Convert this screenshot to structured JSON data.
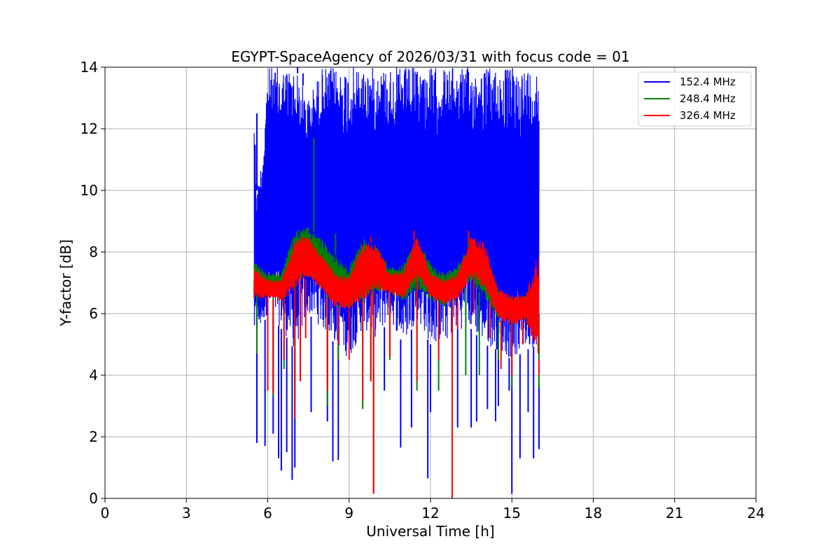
{
  "chart_data": {
    "type": "line",
    "title": "EGYPT-SpaceAgency of 2026/03/31 with focus code = 01",
    "xlabel": "Universal Time [h]",
    "ylabel": "Y-factor [dB]",
    "xlim": [
      0,
      24
    ],
    "ylim": [
      0,
      14
    ],
    "x_ticks": [
      0,
      3,
      6,
      9,
      12,
      15,
      18,
      21,
      24
    ],
    "y_ticks": [
      0,
      2,
      4,
      6,
      8,
      10,
      12,
      14
    ],
    "grid": true,
    "legend_position": "top-right",
    "x_start": 5.5,
    "x_end": 16.0,
    "series": [
      {
        "name": "152.4 MHz",
        "color": "#0000ff",
        "band_top": [
          [
            5.5,
            13.2
          ],
          [
            5.6,
            10.0
          ],
          [
            5.8,
            11.2
          ],
          [
            6.0,
            14.0
          ],
          [
            6.5,
            14.0
          ],
          [
            7.0,
            14.0
          ],
          [
            7.5,
            13.0
          ],
          [
            8.0,
            14.0
          ],
          [
            10.0,
            14.0
          ],
          [
            12.0,
            14.0
          ],
          [
            14.0,
            14.0
          ],
          [
            16.0,
            14.0
          ]
        ],
        "band_bottom": [
          [
            5.5,
            5.0
          ],
          [
            6.0,
            6.0
          ],
          [
            6.5,
            5.5
          ],
          [
            7.0,
            4.8
          ],
          [
            7.5,
            6.0
          ],
          [
            8.0,
            5.5
          ],
          [
            8.5,
            5.0
          ],
          [
            9.0,
            4.5
          ],
          [
            9.5,
            5.5
          ],
          [
            10.0,
            5.2
          ],
          [
            10.5,
            5.8
          ],
          [
            11.0,
            5.0
          ],
          [
            11.5,
            5.8
          ],
          [
            12.0,
            5.0
          ],
          [
            12.5,
            5.0
          ],
          [
            13.0,
            5.5
          ],
          [
            13.5,
            5.5
          ],
          [
            14.0,
            5.0
          ],
          [
            14.5,
            4.8
          ],
          [
            15.0,
            4.5
          ],
          [
            15.5,
            4.8
          ],
          [
            16.0,
            5.0
          ]
        ],
        "dips": [
          [
            5.6,
            1.8
          ],
          [
            5.9,
            1.7
          ],
          [
            6.2,
            2.1
          ],
          [
            6.4,
            1.3
          ],
          [
            6.5,
            0.9
          ],
          [
            6.7,
            1.5
          ],
          [
            6.9,
            0.6
          ],
          [
            7.0,
            1.0
          ],
          [
            7.6,
            2.8
          ],
          [
            8.2,
            2.5
          ],
          [
            8.4,
            1.2
          ],
          [
            8.6,
            1.25
          ],
          [
            9.9,
            0.15
          ],
          [
            10.3,
            3.5
          ],
          [
            10.9,
            1.65
          ],
          [
            11.3,
            2.3
          ],
          [
            11.9,
            0.65
          ],
          [
            12.0,
            2.8
          ],
          [
            13.0,
            2.3
          ],
          [
            13.5,
            2.3
          ],
          [
            13.7,
            2.5
          ],
          [
            14.1,
            2.9
          ],
          [
            14.4,
            2.5
          ],
          [
            14.5,
            3.0
          ],
          [
            14.9,
            3.5
          ],
          [
            15.0,
            0.15
          ],
          [
            15.3,
            1.3
          ],
          [
            15.6,
            2.8
          ],
          [
            15.8,
            1.3
          ],
          [
            16.0,
            1.6
          ]
        ],
        "spikes": [
          [
            5.6,
            12.5
          ],
          [
            5.8,
            11.1
          ],
          [
            6.3,
            13.8
          ],
          [
            6.6,
            14.0
          ],
          [
            7.1,
            14.0
          ],
          [
            7.3,
            13.8
          ],
          [
            13.2,
            13.6
          ],
          [
            15.2,
            10.3
          ]
        ]
      },
      {
        "name": "248.4 MHz",
        "color": "#008000",
        "band_top": [
          [
            5.5,
            7.7
          ],
          [
            6.0,
            7.3
          ],
          [
            6.5,
            7.3
          ],
          [
            7.0,
            8.7
          ],
          [
            7.5,
            8.8
          ],
          [
            8.0,
            8.4
          ],
          [
            8.5,
            7.9
          ],
          [
            9.0,
            7.5
          ],
          [
            9.5,
            8.5
          ],
          [
            10.0,
            8.2
          ],
          [
            10.5,
            7.5
          ],
          [
            11.0,
            7.6
          ],
          [
            11.5,
            8.5
          ],
          [
            12.0,
            7.6
          ],
          [
            12.5,
            7.3
          ],
          [
            13.0,
            7.6
          ],
          [
            13.5,
            8.3
          ],
          [
            14.0,
            7.9
          ],
          [
            14.5,
            6.8
          ],
          [
            15.0,
            6.5
          ],
          [
            15.5,
            6.6
          ],
          [
            16.0,
            7.4
          ]
        ],
        "band_bottom": [
          [
            5.5,
            6.6
          ],
          [
            6.0,
            6.6
          ],
          [
            6.5,
            6.6
          ],
          [
            7.0,
            7.0
          ],
          [
            7.5,
            7.2
          ],
          [
            8.0,
            6.8
          ],
          [
            8.5,
            6.3
          ],
          [
            9.0,
            6.2
          ],
          [
            9.5,
            6.5
          ],
          [
            10.0,
            6.7
          ],
          [
            10.5,
            6.7
          ],
          [
            11.0,
            6.4
          ],
          [
            11.5,
            6.8
          ],
          [
            12.0,
            6.4
          ],
          [
            12.5,
            6.2
          ],
          [
            13.0,
            6.6
          ],
          [
            13.5,
            7.0
          ],
          [
            14.0,
            6.5
          ],
          [
            14.5,
            5.8
          ],
          [
            15.0,
            5.8
          ],
          [
            15.5,
            5.8
          ],
          [
            16.0,
            6.0
          ]
        ],
        "dips": [
          [
            5.6,
            4.7
          ],
          [
            6.2,
            3.3
          ],
          [
            6.6,
            4.2
          ],
          [
            7.0,
            3.0
          ],
          [
            8.2,
            3.0
          ],
          [
            8.6,
            4.5
          ],
          [
            9.5,
            2.9
          ],
          [
            9.8,
            3.8
          ],
          [
            9.9,
            0.3
          ],
          [
            10.5,
            4.5
          ],
          [
            11.5,
            3.5
          ],
          [
            12.3,
            3.5
          ],
          [
            12.8,
            3.7
          ],
          [
            13.3,
            4.0
          ],
          [
            13.8,
            4.0
          ],
          [
            14.5,
            4.5
          ],
          [
            15.0,
            3.6
          ],
          [
            16.0,
            3.6
          ]
        ],
        "spikes": [
          [
            7.7,
            11.7
          ],
          [
            7.3,
            8.6
          ],
          [
            8.5,
            8.6
          ],
          [
            13.4,
            8.6
          ]
        ]
      },
      {
        "name": "326.4 MHz",
        "color": "#ff0000",
        "band_top": [
          [
            5.5,
            7.5
          ],
          [
            6.0,
            7.1
          ],
          [
            6.5,
            7.1
          ],
          [
            7.0,
            8.4
          ],
          [
            7.5,
            8.5
          ],
          [
            8.0,
            7.9
          ],
          [
            8.5,
            7.3
          ],
          [
            9.0,
            7.2
          ],
          [
            9.5,
            8.3
          ],
          [
            10.0,
            8.3
          ],
          [
            10.5,
            7.3
          ],
          [
            11.0,
            7.4
          ],
          [
            11.5,
            8.6
          ],
          [
            12.0,
            7.3
          ],
          [
            12.5,
            7.1
          ],
          [
            13.0,
            7.3
          ],
          [
            13.5,
            8.5
          ],
          [
            14.0,
            8.3
          ],
          [
            14.5,
            6.8
          ],
          [
            15.0,
            6.6
          ],
          [
            15.5,
            6.6
          ],
          [
            16.0,
            8.0
          ]
        ],
        "band_bottom": [
          [
            5.5,
            6.5
          ],
          [
            6.0,
            6.5
          ],
          [
            6.5,
            6.4
          ],
          [
            7.0,
            6.8
          ],
          [
            7.5,
            7.2
          ],
          [
            8.0,
            6.7
          ],
          [
            8.5,
            6.2
          ],
          [
            9.0,
            6.1
          ],
          [
            9.5,
            6.4
          ],
          [
            10.0,
            6.8
          ],
          [
            10.5,
            6.6
          ],
          [
            11.0,
            6.5
          ],
          [
            11.5,
            7.2
          ],
          [
            12.0,
            6.5
          ],
          [
            12.5,
            6.3
          ],
          [
            13.0,
            6.4
          ],
          [
            13.5,
            7.2
          ],
          [
            14.0,
            6.8
          ],
          [
            14.5,
            5.8
          ],
          [
            15.0,
            5.6
          ],
          [
            15.5,
            5.8
          ],
          [
            16.0,
            4.5
          ]
        ],
        "dips": [
          [
            5.5,
            7.1
          ],
          [
            6.0,
            3.5
          ],
          [
            6.2,
            3.4
          ],
          [
            6.6,
            4.5
          ],
          [
            7.0,
            2.6
          ],
          [
            7.2,
            3.8
          ],
          [
            7.4,
            5.2
          ],
          [
            8.2,
            3.5
          ],
          [
            8.6,
            5.0
          ],
          [
            9.0,
            4.5
          ],
          [
            9.5,
            3.2
          ],
          [
            9.8,
            3.8
          ],
          [
            9.9,
            0.15
          ],
          [
            10.5,
            4.6
          ],
          [
            11.5,
            3.8
          ],
          [
            12.3,
            4.5
          ],
          [
            12.8,
            0.0
          ],
          [
            13.0,
            5.5
          ],
          [
            13.6,
            6.0
          ],
          [
            14.2,
            5.2
          ],
          [
            14.6,
            4.2
          ],
          [
            15.0,
            4.0
          ],
          [
            15.4,
            5.0
          ],
          [
            16.0,
            4.0
          ]
        ],
        "spikes": [
          [
            7.3,
            8.5
          ],
          [
            9.8,
            8.5
          ],
          [
            11.4,
            8.7
          ],
          [
            13.4,
            8.7
          ]
        ]
      }
    ]
  }
}
